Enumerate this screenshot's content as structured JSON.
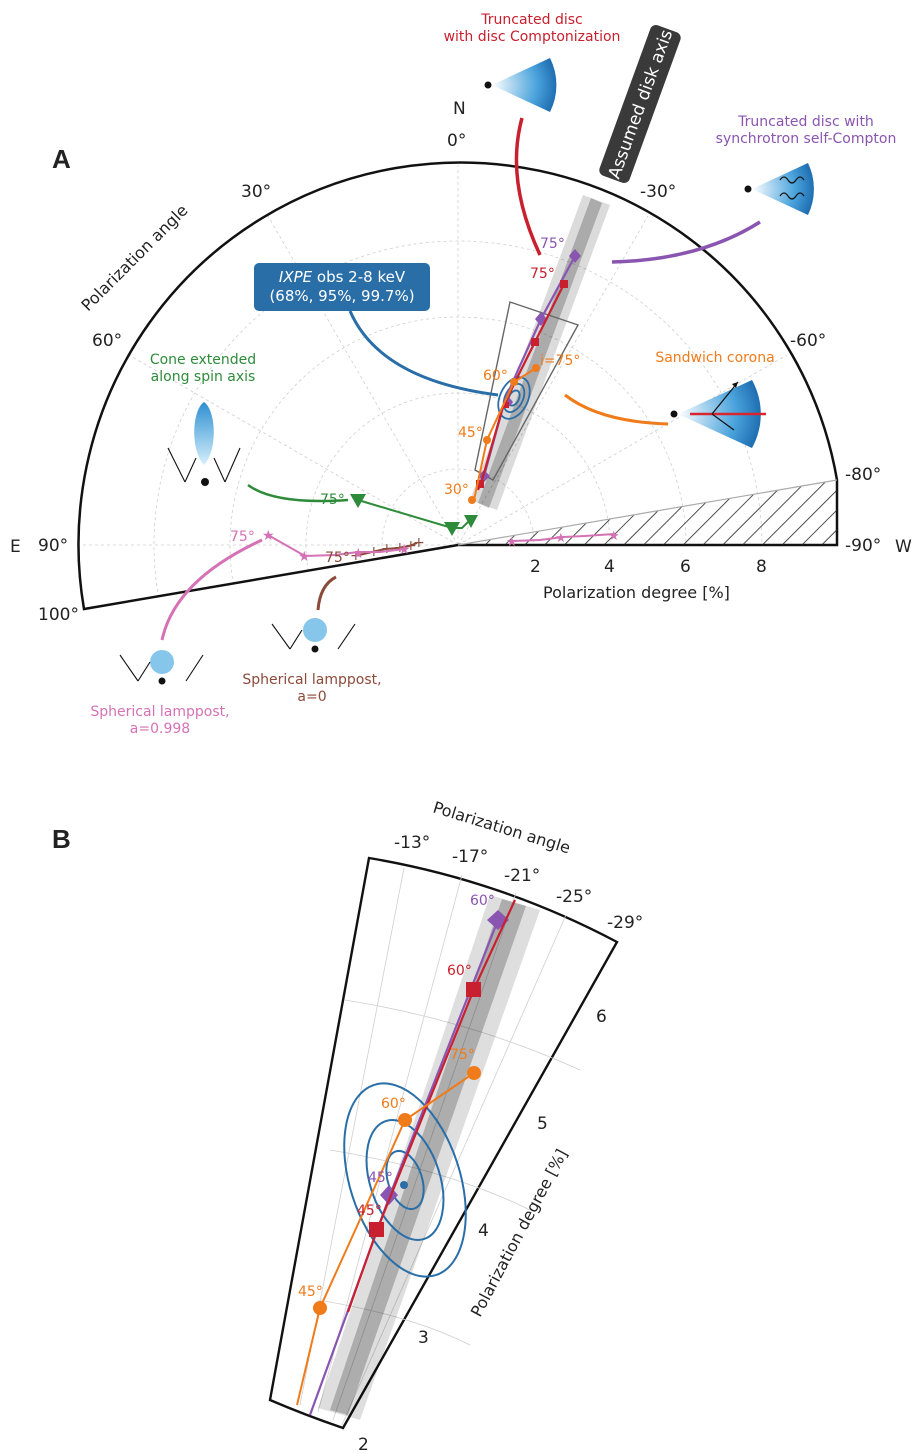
{
  "colors": {
    "purple": "#8a55b0",
    "red": "#c8202e",
    "orange": "#f07b1a",
    "green": "#2e8b3a",
    "pink": "#d472b5",
    "brown": "#8b4a3a",
    "ixpe": "#2a6ea8",
    "axis_badge": "#3a3a3a"
  },
  "panelA": {
    "label": "A",
    "angle_title": "Polarization angle",
    "xlabel": "Polarization degree [%]",
    "compass": {
      "north": "N",
      "east": "E",
      "west": "W"
    },
    "angle_ticks": [
      "0°",
      "30°",
      "60°",
      "90°",
      "100°",
      "-30°",
      "-60°",
      "-80°",
      "-90°"
    ],
    "pd_ticks": [
      "2",
      "4",
      "6",
      "8"
    ],
    "axis_badge": "Assumed disk axis",
    "ixpe_box": {
      "italic": "IXPE",
      "line1_rest": " obs 2-8 keV",
      "line2": "(68%, 95%, 99.7%)"
    },
    "labels": {
      "truncated_compt_1": "Truncated disc",
      "truncated_compt_2": "with disc Comptonization",
      "truncated_ssc_1": "Truncated disc with",
      "truncated_ssc_2": "synchrotron self-Compton",
      "cone_1": "Cone extended",
      "cone_2": "along spin axis",
      "sandwich": "Sandwich corona",
      "lamp0_1": "Spherical lamppost,",
      "lamp0_2": "a=0",
      "lamp998_1": "Spherical lamppost,",
      "lamp998_2": "a=0.998"
    },
    "annotations": {
      "purple75": "75°",
      "red75": "75°",
      "orange_i75": "i=75°",
      "orange60": "60°",
      "orange45": "45°",
      "orange30": "30°",
      "green75": "75°",
      "brown75": "75°",
      "pink75": "75°"
    }
  },
  "panelB": {
    "label": "B",
    "angle_title": "Polarization angle",
    "ylabel": "Polarization degree [%]",
    "angle_ticks": [
      "-13°",
      "-17°",
      "-21°",
      "-25°",
      "-29°"
    ],
    "pd_ticks": [
      "2",
      "3",
      "4",
      "5",
      "6"
    ],
    "annotations": {
      "purple60": "60°",
      "red60": "60°",
      "orange75": "75°",
      "orange60": "60°",
      "purple45": "45°",
      "red45": "45°",
      "orange45": "45°"
    }
  },
  "chart_data": [
    {
      "type": "scatter",
      "panel": "A",
      "projection": "polar half-disc (angle vs degree)",
      "xlabel": "Polarization degree [%]",
      "angle_title": "Polarization angle",
      "radial_range": [
        0,
        10
      ],
      "angle_range": [
        -90,
        100
      ],
      "series": [
        {
          "name": "Truncated disc with disc Comptonization",
          "x_inclination": [
            "30°",
            "45°",
            "60°",
            "75°"
          ],
          "pd": [
            1.3,
            2.7,
            3.9,
            6.5
          ],
          "pa": [
            -23,
            -21,
            -21,
            -21
          ]
        },
        {
          "name": "Truncated disc with synchrotron self-Compton",
          "x_inclination": [
            "30°",
            "45°",
            "60°",
            "75°"
          ],
          "pd": [
            1.2,
            3.8,
            5.4,
            7.5
          ],
          "pa": [
            -21,
            -21,
            -21,
            -21
          ]
        },
        {
          "name": "Sandwich corona",
          "x_inclination": [
            "30°",
            "45°",
            "60°",
            "75°"
          ],
          "pd": [
            0.7,
            2.9,
            4.3,
            4.7
          ],
          "pa": [
            -12,
            -13,
            -17,
            -27
          ]
        },
        {
          "name": "Cone extended along spin axis",
          "pd": [
            0.5,
            0.4,
            3.5
          ],
          "pa": [
            -60,
            -80,
            80
          ]
        },
        {
          "name": "Spherical lamppost, a=0",
          "pd": [
            1.2,
            2.0,
            2.8,
            3.4,
            3.9,
            4.3
          ],
          "pa": [
            88,
            92,
            94,
            94,
            95,
            96
          ]
        },
        {
          "name": "Spherical lamppost, a=0.998",
          "pd": [
            2.0,
            2.6,
            3.4,
            4.3,
            5.2,
            5.7
          ],
          "pa": [
            96,
            98,
            97,
            94,
            90,
            88
          ]
        },
        {
          "name": "IXPE obs 2-8 keV",
          "pd": [
            4.0
          ],
          "pa": [
            -20
          ]
        }
      ]
    },
    {
      "type": "scatter",
      "panel": "B",
      "projection": "zoomed polar wedge",
      "ylabel": "Polarization degree [%]",
      "angle_title": "Polarization angle",
      "radial_range": [
        2,
        6.5
      ],
      "angle_range": [
        -29,
        -13
      ],
      "series": [
        {
          "name": "Truncated disc with synchrotron self-Compton",
          "inclination": [
            "45°",
            "60°"
          ],
          "pd": [
            4.0,
            6.4
          ],
          "pa": [
            -17,
            -21
          ]
        },
        {
          "name": "Truncated disc with disc Comptonization",
          "inclination": [
            "45°",
            "60°"
          ],
          "pd": [
            3.8,
            6.0
          ],
          "pa": [
            -16,
            -20
          ]
        },
        {
          "name": "Sandwich corona",
          "inclination": [
            "45°",
            "60°",
            "75°"
          ],
          "pd": [
            3.3,
            4.6,
            5.2
          ],
          "pa": [
            -13,
            -16,
            -22
          ]
        },
        {
          "name": "IXPE obs 2-8 keV",
          "pd": [
            4.1
          ],
          "pa": [
            -18
          ]
        }
      ]
    }
  ]
}
